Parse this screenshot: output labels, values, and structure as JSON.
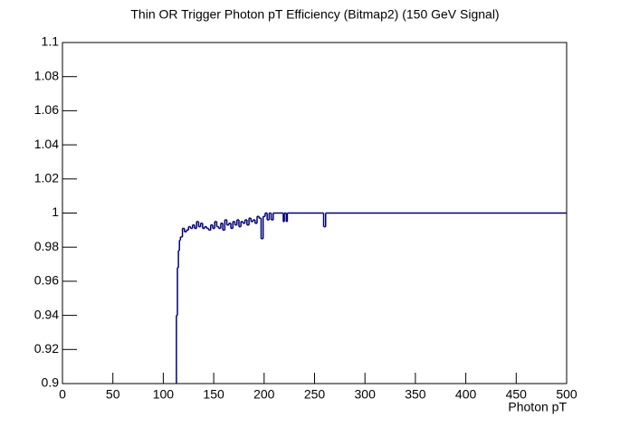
{
  "chart_data": {
    "type": "histogram",
    "title": "Thin OR Trigger Photon pT Efficiency (Bitmap2) (150 GeV Signal)",
    "x_label": "Photon pT",
    "color": "#000080",
    "bins": [
      113,
      114,
      115,
      116,
      117,
      119,
      121,
      123,
      125,
      127,
      129,
      131,
      133,
      135,
      137,
      139,
      141,
      143,
      145,
      147,
      149,
      151,
      153,
      155,
      157,
      159,
      161,
      163,
      165,
      167,
      169,
      171,
      173,
      175,
      177,
      179,
      181,
      183,
      185,
      187,
      189,
      191,
      193,
      195,
      197,
      199,
      201,
      203,
      205,
      207,
      209,
      219,
      220,
      222,
      223,
      259,
      261,
      500
    ],
    "values": [
      0.94,
      0.968,
      0.978,
      0.984,
      0.986,
      0.991,
      0.989,
      0.99,
      0.992,
      0.991,
      0.993,
      0.991,
      0.995,
      0.992,
      0.994,
      0.991,
      0.992,
      0.991,
      0.99,
      0.993,
      0.991,
      0.995,
      0.992,
      0.991,
      0.994,
      0.99,
      0.996,
      0.993,
      0.994,
      0.991,
      0.995,
      0.993,
      0.996,
      0.992,
      0.995,
      0.994,
      0.996,
      0.993,
      0.997,
      0.995,
      0.996,
      0.994,
      0.998,
      0.997,
      0.985,
      0.998,
      1,
      0.996,
      1,
      0.996,
      1,
      0.995,
      1,
      0.995,
      1,
      0.992,
      1
    ],
    "xlim": [
      0,
      500
    ],
    "xticks": [
      0,
      50,
      100,
      150,
      200,
      250,
      300,
      350,
      400,
      450,
      500
    ],
    "ylim": [
      0.9,
      1.1
    ],
    "yticks": [
      0.9,
      0.92,
      0.94,
      0.96,
      0.98,
      1,
      1.02,
      1.04,
      1.06,
      1.08,
      1.1
    ]
  }
}
